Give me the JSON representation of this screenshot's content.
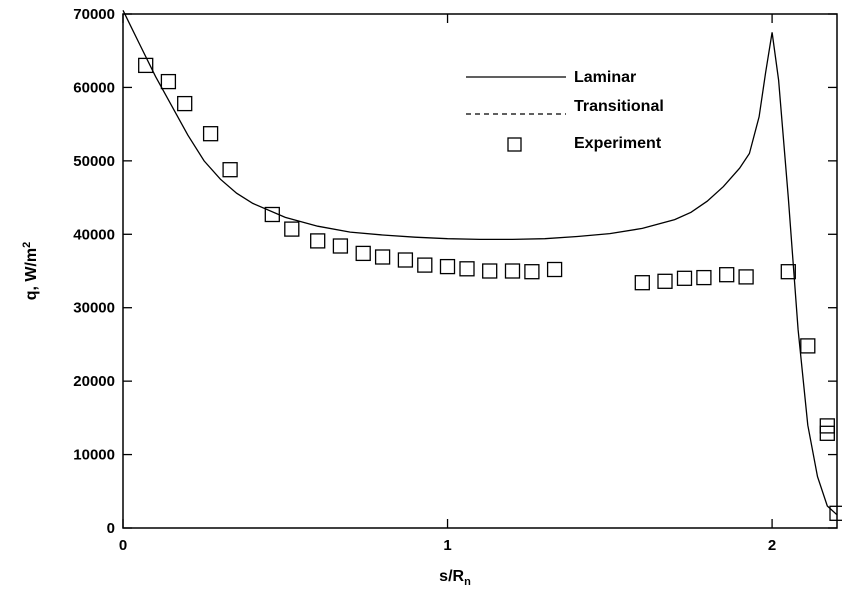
{
  "chart_data": {
    "type": "line",
    "title": "",
    "xlabel": "s/R",
    "xlabel_sub": "n",
    "ylabel": "q, W/m",
    "ylabel_sup": "2",
    "xlim": [
      0,
      2.2
    ],
    "ylim": [
      0,
      70000
    ],
    "x_ticks": [
      0,
      1,
      2
    ],
    "x_tick_labels": [
      "0",
      "1",
      "2"
    ],
    "y_ticks": [
      0,
      10000,
      20000,
      30000,
      40000,
      50000,
      60000,
      70000
    ],
    "y_tick_labels": [
      "0",
      "10000",
      "20000",
      "30000",
      "40000",
      "50000",
      "60000",
      "70000"
    ],
    "grid": false,
    "legend_position": "top-right",
    "series": [
      {
        "name": "Laminar",
        "style": "solid",
        "x": [
          0,
          0.05,
          0.1,
          0.15,
          0.2,
          0.25,
          0.3,
          0.35,
          0.4,
          0.5,
          0.6,
          0.7,
          0.8,
          0.9,
          1.0,
          1.1,
          1.2,
          1.3,
          1.4,
          1.5,
          1.6,
          1.7,
          1.75,
          1.8,
          1.85,
          1.9,
          1.93,
          1.96,
          1.98,
          2.0,
          2.02,
          2.05,
          2.08,
          2.11,
          2.14,
          2.17,
          2.2
        ],
        "y": [
          70500,
          66000,
          61500,
          57500,
          53500,
          50000,
          47500,
          45600,
          44200,
          42300,
          41100,
          40300,
          39900,
          39600,
          39400,
          39300,
          39300,
          39400,
          39700,
          40100,
          40800,
          42000,
          43000,
          44500,
          46500,
          49000,
          51000,
          56000,
          62000,
          67500,
          61000,
          45000,
          27000,
          14000,
          7000,
          3000,
          1800
        ]
      },
      {
        "name": "Transitional",
        "style": "dashed",
        "x": [],
        "y": []
      },
      {
        "name": "Experiment",
        "style": "marker-square",
        "x": [
          0.07,
          0.14,
          0.19,
          0.27,
          0.33,
          0.46,
          0.52,
          0.6,
          0.67,
          0.74,
          0.8,
          0.87,
          0.93,
          1.0,
          1.06,
          1.13,
          1.2,
          1.26,
          1.33,
          1.6,
          1.67,
          1.73,
          1.79,
          1.86,
          1.92,
          2.05,
          2.11,
          2.17,
          2.17,
          2.2
        ],
        "y": [
          63000,
          60800,
          57800,
          53700,
          48800,
          42700,
          40700,
          39100,
          38400,
          37400,
          36900,
          36500,
          35800,
          35600,
          35300,
          35000,
          35000,
          34900,
          35200,
          33400,
          33600,
          34000,
          34100,
          34500,
          34200,
          34900,
          24800,
          13900,
          12900,
          2000
        ]
      }
    ]
  }
}
